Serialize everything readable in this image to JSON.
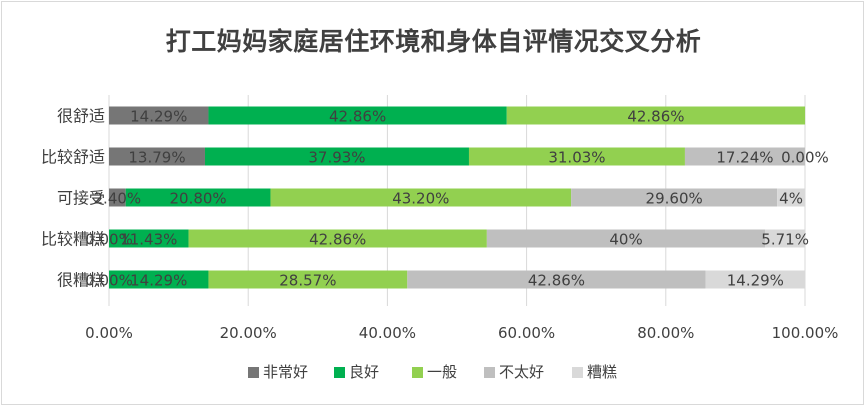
{
  "chart_data": {
    "type": "bar",
    "orientation": "horizontal",
    "stacked": "percent",
    "title": "打工妈妈家庭居住环境和身体自评情况交叉分析",
    "categories": [
      "很舒适",
      "比较舒适",
      "可接受",
      "比较糟糕",
      "很糟糕"
    ],
    "xlim": [
      0,
      100
    ],
    "x_ticks": [
      "0.00%",
      "20.00%",
      "40.00%",
      "60.00%",
      "80.00%",
      "100.00%"
    ],
    "grid": true,
    "legend_position": "bottom",
    "series": [
      {
        "name": "非常好",
        "color": "#767676",
        "values": [
          14.29,
          13.79,
          2.4,
          0.0,
          0.0
        ],
        "labels": [
          "14.29%",
          "13.79%",
          "2.40%",
          "0.00%",
          "0.00%"
        ]
      },
      {
        "name": "良好",
        "color": "#00b050",
        "values": [
          42.86,
          37.93,
          20.8,
          11.43,
          14.29
        ],
        "labels": [
          "42.86%",
          "37.93%",
          "20.80%",
          "11.43%",
          "14.29%"
        ]
      },
      {
        "name": "一般",
        "color": "#92d050",
        "values": [
          42.86,
          31.03,
          43.2,
          42.86,
          28.57
        ],
        "labels": [
          "42.86%",
          "31.03%",
          "43.20%",
          "42.86%",
          "28.57%"
        ]
      },
      {
        "name": "不太好",
        "color": "#bfbfbf",
        "values": [
          0.0,
          17.24,
          29.6,
          40.0,
          42.86
        ],
        "labels": [
          "",
          "17.24%",
          "29.60%",
          "40%",
          "42.86%"
        ]
      },
      {
        "name": "糟糕",
        "color": "#d9d9d9",
        "values": [
          0.0,
          0.0,
          4.0,
          5.71,
          14.29
        ],
        "labels": [
          "",
          "0.00%",
          "4%",
          "5.71%",
          "14.29%"
        ]
      }
    ]
  }
}
